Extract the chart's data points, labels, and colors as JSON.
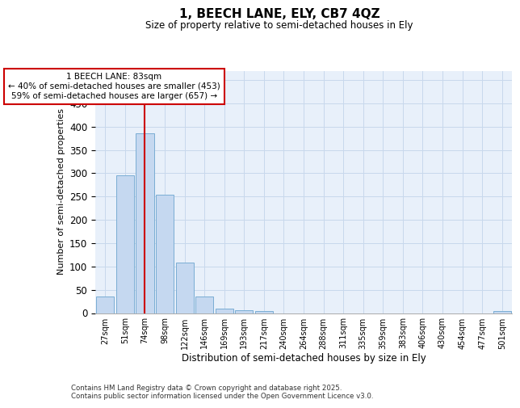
{
  "title": "1, BEECH LANE, ELY, CB7 4QZ",
  "subtitle": "Size of property relative to semi-detached houses in Ely",
  "xlabel": "Distribution of semi-detached houses by size in Ely",
  "ylabel": "Number of semi-detached properties",
  "categories": [
    "27sqm",
    "51sqm",
    "74sqm",
    "98sqm",
    "122sqm",
    "146sqm",
    "169sqm",
    "193sqm",
    "217sqm",
    "240sqm",
    "264sqm",
    "288sqm",
    "311sqm",
    "335sqm",
    "359sqm",
    "383sqm",
    "406sqm",
    "430sqm",
    "454sqm",
    "477sqm",
    "501sqm"
  ],
  "values": [
    36,
    296,
    385,
    254,
    108,
    36,
    10,
    6,
    4,
    0,
    0,
    0,
    0,
    0,
    0,
    0,
    0,
    0,
    0,
    0,
    5
  ],
  "bar_color": "#c5d8f0",
  "bar_edge_color": "#7aadd4",
  "ylim": [
    0,
    520
  ],
  "yticks": [
    0,
    50,
    100,
    150,
    200,
    250,
    300,
    350,
    400,
    450,
    500
  ],
  "vline_x": 2,
  "annotation_line1": "1 BEECH LANE: 83sqm",
  "annotation_line2": "← 40% of semi-detached houses are smaller (453)",
  "annotation_line3": "59% of semi-detached houses are larger (657) →",
  "annotation_box_color": "#ffffff",
  "annotation_border_color": "#cc0000",
  "vline_color": "#cc0000",
  "grid_color": "#c8d8ec",
  "background_color": "#e8f0fa",
  "footer_line1": "Contains HM Land Registry data © Crown copyright and database right 2025.",
  "footer_line2": "Contains public sector information licensed under the Open Government Licence v3.0."
}
